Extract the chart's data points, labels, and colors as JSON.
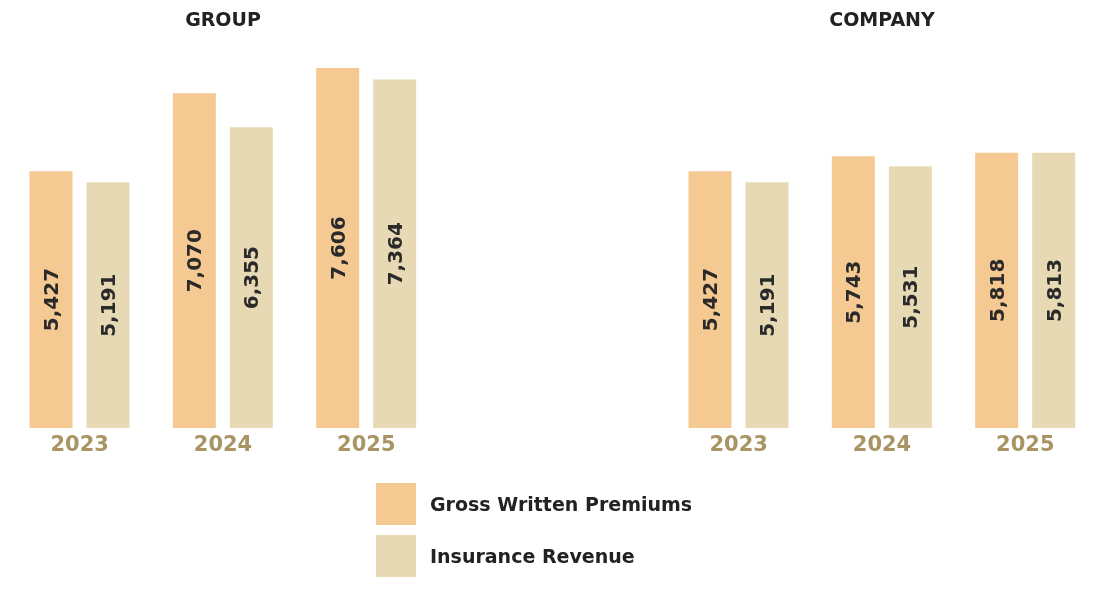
{
  "chart_data": [
    {
      "type": "bar",
      "title": "GROUP",
      "categories": [
        "2023",
        "2024",
        "2025"
      ],
      "series": [
        {
          "name": "Gross Written Premiums",
          "color": "#f5c992",
          "values": [
            5427,
            7070,
            7606
          ],
          "value_labels": [
            "5,427",
            "7,070",
            "7,606"
          ]
        },
        {
          "name": "Insurance Revenue",
          "color": "#e8d9b5",
          "values": [
            5191,
            6355,
            7364
          ],
          "value_labels": [
            "5,191",
            "6,355",
            "7,364"
          ]
        }
      ],
      "legend": "bottom",
      "tick_labels": "x"
    },
    {
      "type": "bar",
      "title": "COMPANY",
      "categories": [
        "2023",
        "2024",
        "2025"
      ],
      "series": [
        {
          "color": "#f5c992",
          "values": [
            5427,
            5743,
            5818
          ],
          "value_labels": [
            "5,427",
            "5,743",
            "5,818"
          ]
        },
        {
          "color": "#e8d9b5",
          "values": [
            5191,
            5531,
            5813
          ],
          "value_labels": [
            "5,191",
            "5,531",
            "5,813"
          ]
        }
      ],
      "tick_labels": "x"
    }
  ]
}
